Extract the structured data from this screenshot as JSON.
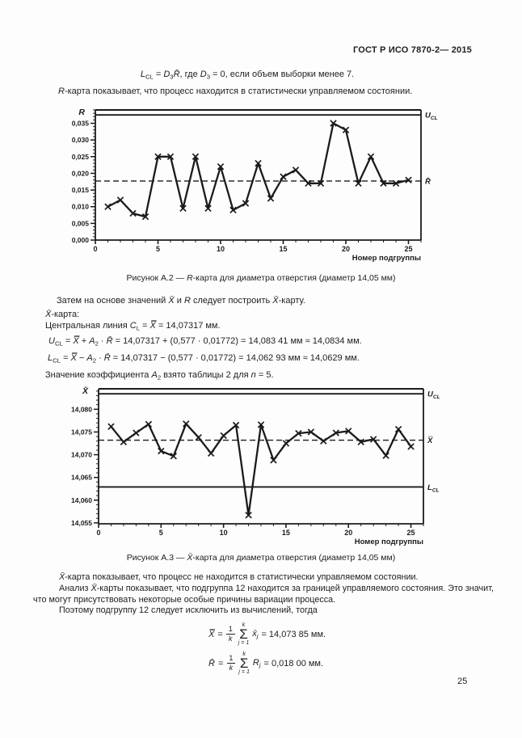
{
  "page": {
    "header": "ГОСТ Р ИСО 7870-2— 2015",
    "page_number": "25"
  },
  "intro": {
    "formula_segments": [
      {
        "t": "L",
        "i": 1
      },
      {
        "t": "CL",
        "sub": 1
      },
      {
        "t": " = "
      },
      {
        "t": "D",
        "i": 1
      },
      {
        "t": "3",
        "sub": 1
      },
      {
        "t": "R̄",
        "i": 1
      },
      {
        "t": ", где "
      },
      {
        "t": "D",
        "i": 1
      },
      {
        "t": "3",
        "sub": 1
      },
      {
        "t": " = 0, если объем выборки менее 7."
      }
    ],
    "para_segments": [
      {
        "t": "R",
        "i": 1
      },
      {
        "t": "-карта показывает, что процесс находится в статистически управляемом состоянии."
      }
    ]
  },
  "figure_a2": {
    "caption_segments": [
      {
        "t": "Рисунок А.2 — "
      },
      {
        "t": "R",
        "i": 1
      },
      {
        "t": "-карта для диаметра отверстия (диаметр 14,05 мм)"
      }
    ]
  },
  "between": {
    "lines": [
      {
        "segments": [
          {
            "t": "Затем на основе значений "
          },
          {
            "t": "X̄",
            "i": 1
          },
          {
            "t": " и "
          },
          {
            "t": "R",
            "i": 1
          },
          {
            "t": " следует построить "
          },
          {
            "t": "X̄",
            "i": 1
          },
          {
            "t": "-карту."
          }
        ]
      },
      {
        "segments": [
          {
            "t": "X̄",
            "i": 1
          },
          {
            "t": "-карта:"
          }
        ]
      },
      {
        "segments": [
          {
            "t": "Центральная линия "
          },
          {
            "t": "C",
            "i": 1
          },
          {
            "t": "L",
            "sub": 1
          },
          {
            "t": " = "
          },
          {
            "t": "X̿",
            "i": 1
          },
          {
            "t": " = 14,07317 мм."
          }
        ]
      },
      {
        "segments": [
          {
            "t": "U",
            "i": 1
          },
          {
            "t": "CL",
            "sub": 1
          },
          {
            "t": " = "
          },
          {
            "t": "X̿",
            "i": 1
          },
          {
            "t": " + "
          },
          {
            "t": "A",
            "i": 1
          },
          {
            "t": "2",
            "sub": 1
          },
          {
            "t": " · "
          },
          {
            "t": "R̄",
            "i": 1
          },
          {
            "t": " = 14,07317 + (0,577 · 0,01772) = 14,083 41 мм ≈ 14,0834 мм."
          }
        ]
      },
      {
        "segments": [
          {
            "t": "L",
            "i": 1
          },
          {
            "t": "CL",
            "sub": 1
          },
          {
            "t": " = "
          },
          {
            "t": "X̿",
            "i": 1
          },
          {
            "t": " − "
          },
          {
            "t": "A",
            "i": 1
          },
          {
            "t": "2",
            "sub": 1
          },
          {
            "t": " · "
          },
          {
            "t": "R̄",
            "i": 1
          },
          {
            "t": " = 14,07317 − (0,577 · 0,01772) = 14,062 93 мм ≈ 14,0629 мм."
          }
        ]
      },
      {
        "segments": [
          {
            "t": "Значение коэффициента "
          },
          {
            "t": "A",
            "i": 1
          },
          {
            "t": "2",
            "sub": 1
          },
          {
            "t": " взято таблицы 2 для "
          },
          {
            "t": "n",
            "i": 1
          },
          {
            "t": " = 5."
          }
        ]
      }
    ]
  },
  "figure_a3": {
    "caption_segments": [
      {
        "t": "Рисунок А.3 — "
      },
      {
        "t": "X̄",
        "i": 1
      },
      {
        "t": "-карта для диаметра отверстия (диаметр 14,05 мм)"
      }
    ]
  },
  "analysis": {
    "lines": [
      {
        "segments": [
          {
            "t": "X̄",
            "i": 1
          },
          {
            "t": "-карта показывает, что процесс не находится в статистически управляемом состоянии."
          }
        ]
      },
      {
        "segments": [
          {
            "t": "Анализ  "
          },
          {
            "t": "X̄",
            "i": 1
          },
          {
            "t": "-карты показывает, что подгруппа 12 находится за границей управляемого состояния. Это значит,"
          }
        ]
      },
      {
        "segments": [
          {
            "t": "что могут присутствовать некоторые особые причины вариации процесса."
          }
        ]
      },
      {
        "segments": [
          {
            "t": "Поэтому подгруппу 12 следует исключить из вычислений, тогда"
          }
        ]
      }
    ]
  },
  "formulas": {
    "f1": {
      "lhs": "X̿",
      "eq": "=",
      "num": "1",
      "den": "k",
      "sum_top": "k",
      "sum_glyph": "Σ",
      "sum_bottom": "j = 1",
      "term": "x̄",
      "term_sub": "j",
      "rhs": "= 14,073 85 мм."
    },
    "f2": {
      "lhs": "R̄",
      "eq": "=",
      "num": "1",
      "den": "k",
      "sum_top": "k",
      "sum_glyph": "Σ",
      "sum_bottom": "j = 1",
      "term": "R",
      "term_sub": "j",
      "rhs": "= 0,018 00 мм."
    }
  },
  "chart_data": [
    {
      "type": "line",
      "axis_title": "R",
      "x": [
        1,
        2,
        3,
        4,
        5,
        6,
        7,
        8,
        9,
        10,
        11,
        12,
        13,
        14,
        15,
        16,
        17,
        18,
        19,
        20,
        21,
        22,
        23,
        24,
        25
      ],
      "values": [
        0.01,
        0.012,
        0.008,
        0.007,
        0.025,
        0.025,
        0.0095,
        0.025,
        0.0095,
        0.022,
        0.009,
        0.011,
        0.023,
        0.0125,
        0.019,
        0.021,
        0.017,
        0.017,
        0.035,
        0.033,
        0.017,
        0.025,
        0.017,
        0.017,
        0.018
      ],
      "xlabel": "Номер подгруппы",
      "xlim": [
        0,
        26
      ],
      "ylim": [
        0,
        0.039
      ],
      "yticks": [
        0,
        0.005,
        0.01,
        0.015,
        0.02,
        0.025,
        0.03,
        0.035
      ],
      "ytick_labels": [
        "0,000",
        "0,005",
        "0,010",
        "0,015",
        "0,020",
        "0,025",
        "0,030",
        "0,035"
      ],
      "y_minor_step": 0.001,
      "xticks_labeled": [
        0,
        5,
        10,
        15,
        20,
        25
      ],
      "x_minor_step": 1,
      "control_lines": [
        {
          "value": 0.0375,
          "style": "solid",
          "label_main": "U",
          "label_sub": "CL"
        },
        {
          "value": 0.0177,
          "style": "dashed",
          "label_main": "R̄",
          "label_sub": ""
        }
      ],
      "marker": "x",
      "ink_color": "#1b1b1b",
      "grid": false,
      "legend": "none"
    },
    {
      "type": "line",
      "axis_title": "X̄",
      "x": [
        1,
        2,
        3,
        4,
        5,
        6,
        7,
        8,
        9,
        10,
        11,
        12,
        13,
        14,
        15,
        16,
        17,
        18,
        19,
        20,
        21,
        22,
        23,
        24,
        25
      ],
      "values": [
        14.0762,
        14.0728,
        14.0748,
        14.0767,
        14.0708,
        14.0697,
        14.0768,
        14.0738,
        14.0703,
        14.0742,
        14.0765,
        14.0567,
        14.0766,
        14.0688,
        14.0725,
        14.0747,
        14.075,
        14.073,
        14.0748,
        14.0752,
        14.0728,
        14.0734,
        14.0698,
        14.0756,
        14.0718
      ],
      "xlabel": "Номер подгруппы",
      "xlim": [
        0,
        26
      ],
      "ylim": [
        14.0548,
        14.0845
      ],
      "yticks": [
        14.055,
        14.06,
        14.065,
        14.07,
        14.075,
        14.08
      ],
      "ytick_labels": [
        "14,055",
        "14,060",
        "14,065",
        "14,070",
        "14,075",
        "14,080"
      ],
      "y_minor_step": 0.001,
      "xticks_labeled": [
        0,
        5,
        10,
        15,
        20,
        25
      ],
      "x_minor_step": 1,
      "control_lines": [
        {
          "value": 14.0834,
          "style": "solid",
          "label_main": "U",
          "label_sub": "CL"
        },
        {
          "value": 14.0732,
          "style": "dashed",
          "label_main": "X̿",
          "label_sub": ""
        },
        {
          "value": 14.0629,
          "style": "solid",
          "label_main": "L",
          "label_sub": "CL"
        }
      ],
      "marker": "x",
      "ink_color": "#1b1b1b",
      "grid": false,
      "legend": "none"
    }
  ]
}
